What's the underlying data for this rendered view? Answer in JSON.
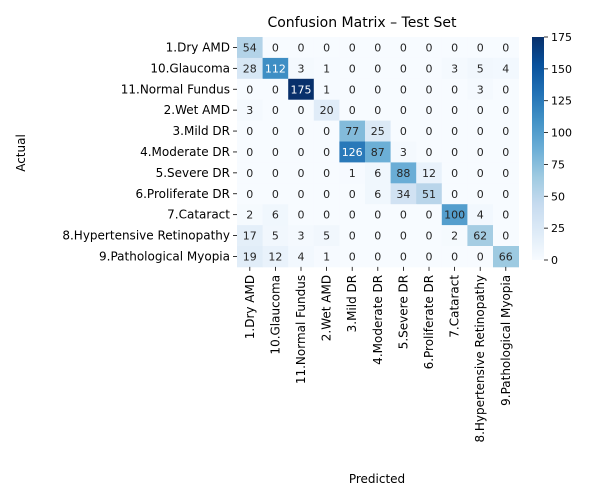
{
  "chart_data": {
    "type": "heatmap",
    "title": "Confusion Matrix – Test Set",
    "xlabel": "Predicted",
    "ylabel": "Actual",
    "row_labels": [
      "1.Dry AMD",
      "10.Glaucoma",
      "11.Normal Fundus",
      "2.Wet AMD",
      "3.Mild DR",
      "4.Moderate DR",
      "5.Severe DR",
      "6.Proliferate DR",
      "7.Cataract",
      "8.Hypertensive Retinopathy",
      "9.Pathological Myopia"
    ],
    "col_labels": [
      "1.Dry AMD",
      "10.Glaucoma",
      "11.Normal Fundus",
      "2.Wet AMD",
      "3.Mild DR",
      "4.Moderate DR",
      "5.Severe DR",
      "6.Proliferate DR",
      "7.Cataract",
      "8.Hypertensive Retinopathy",
      "9.Pathological Myopia"
    ],
    "matrix": [
      [
        54,
        0,
        0,
        0,
        0,
        0,
        0,
        0,
        0,
        0,
        0
      ],
      [
        28,
        112,
        3,
        1,
        0,
        0,
        0,
        0,
        3,
        5,
        4
      ],
      [
        0,
        0,
        175,
        1,
        0,
        0,
        0,
        0,
        0,
        3,
        0
      ],
      [
        3,
        0,
        0,
        20,
        0,
        0,
        0,
        0,
        0,
        0,
        0
      ],
      [
        0,
        0,
        0,
        0,
        77,
        25,
        0,
        0,
        0,
        0,
        0
      ],
      [
        0,
        0,
        0,
        0,
        126,
        87,
        3,
        0,
        0,
        0,
        0
      ],
      [
        0,
        0,
        0,
        0,
        1,
        6,
        88,
        12,
        0,
        0,
        0
      ],
      [
        0,
        0,
        0,
        0,
        0,
        6,
        34,
        51,
        0,
        0,
        0
      ],
      [
        2,
        6,
        0,
        0,
        0,
        0,
        0,
        0,
        100,
        4,
        0
      ],
      [
        17,
        5,
        3,
        5,
        0,
        0,
        0,
        0,
        2,
        62,
        0
      ],
      [
        19,
        12,
        4,
        1,
        0,
        0,
        0,
        0,
        0,
        0,
        66
      ]
    ],
    "colorbar": {
      "min": 0,
      "max": 175,
      "ticks": [
        0,
        25,
        50,
        75,
        100,
        125,
        150,
        175
      ],
      "colormap": "Blues"
    }
  }
}
